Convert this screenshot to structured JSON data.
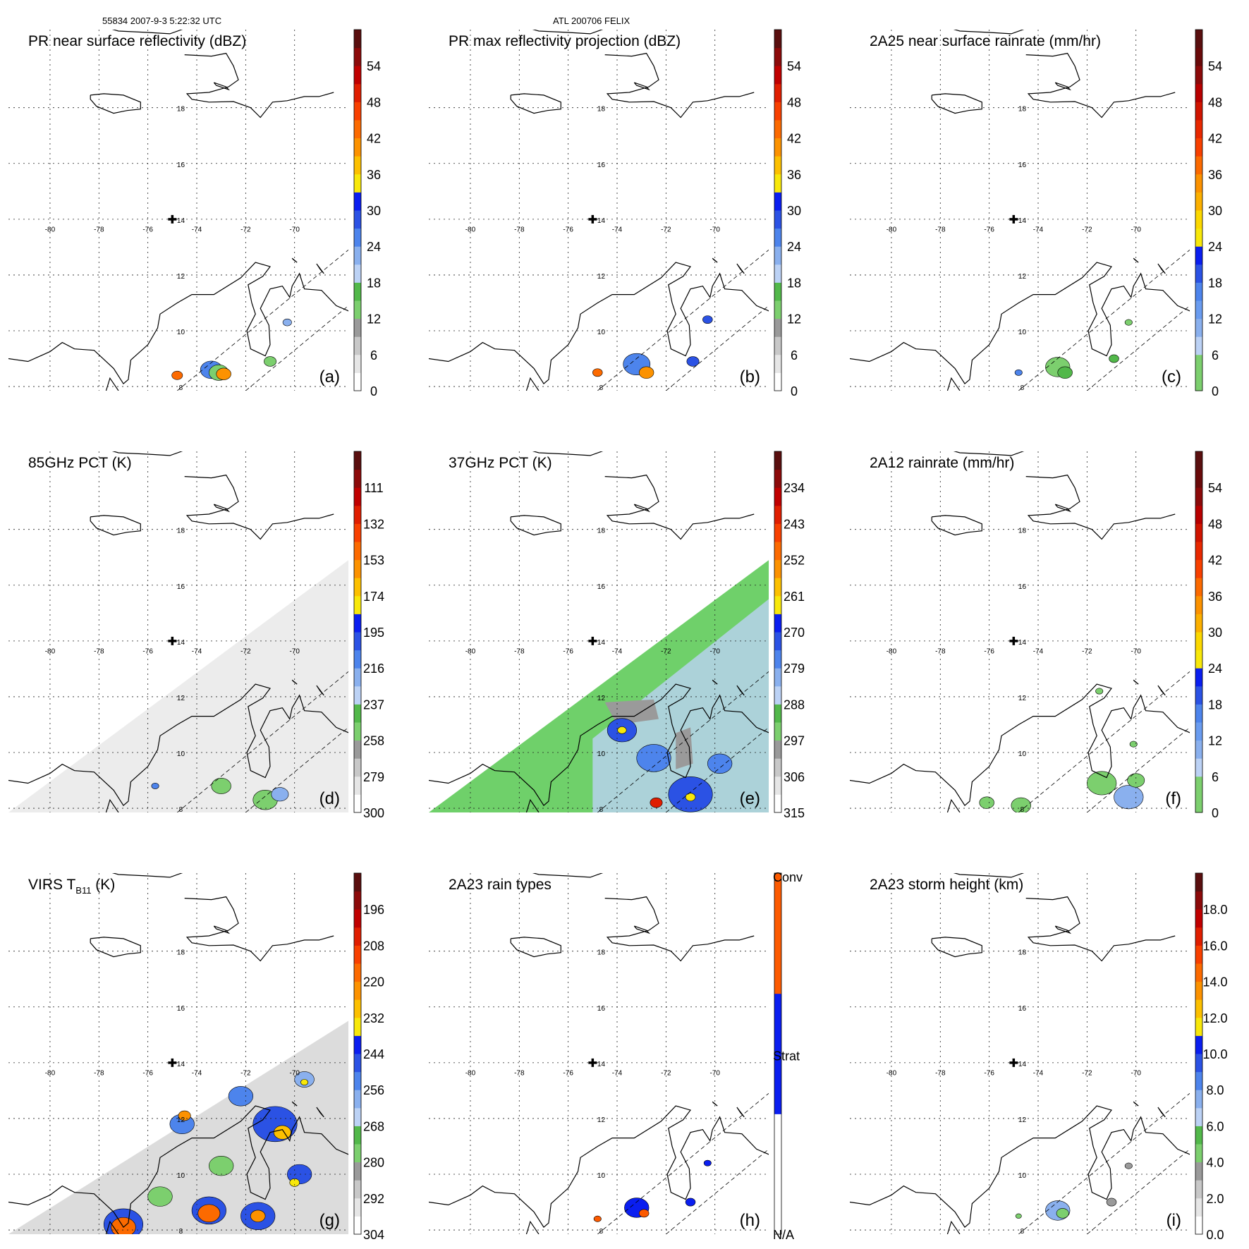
{
  "header": {
    "orbit_info": "55834 2007-9-3 5:22:32 UTC",
    "storm_info": "ATL 200706 FELIX"
  },
  "map": {
    "lon_labels": [
      "-80",
      "-78",
      "-76",
      "-74",
      "-72",
      "-70"
    ],
    "lat_labels": [
      "18",
      "16",
      "14",
      "12",
      "10",
      "8"
    ],
    "storm_center": {
      "lon": -75.0,
      "lat": 14.0
    }
  },
  "panels": [
    {
      "id": "a",
      "title": "PR near surface reflectivity (dBZ)",
      "title_sub": "",
      "title_tail": "",
      "letter": "(a)",
      "swath": "pr",
      "colorbar": {
        "labels": [
          "0",
          "6",
          "12",
          "18",
          "24",
          "30",
          "36",
          "42",
          "48",
          "54"
        ],
        "colors": [
          "#ffffff",
          "#e6e6e6",
          "#c8c8c8",
          "#9a9a9a",
          "#7ccf6e",
          "#52b84a",
          "#bcd2f5",
          "#8ab0ee",
          "#4d84ec",
          "#2b52e4",
          "#0a1ef0",
          "#f8e80a",
          "#fcc000",
          "#fc9200",
          "#fc6a00",
          "#f84000",
          "#e01e00",
          "#c00000",
          "#8c0a0a",
          "#5a0f0f"
        ]
      },
      "echoes": [
        {
          "lon": -73.4,
          "lat": 8.6,
          "size": 0.45,
          "color": "#4d84ec"
        },
        {
          "lon": -73.1,
          "lat": 8.5,
          "size": 0.4,
          "color": "#7ccf6e"
        },
        {
          "lon": -72.9,
          "lat": 8.45,
          "size": 0.3,
          "color": "#fc9200"
        },
        {
          "lon": -74.8,
          "lat": 8.4,
          "size": 0.22,
          "color": "#fc6a00"
        },
        {
          "lon": -71.0,
          "lat": 8.9,
          "size": 0.25,
          "color": "#7ccf6e"
        },
        {
          "lon": -70.3,
          "lat": 10.3,
          "size": 0.18,
          "color": "#8ab0ee"
        }
      ]
    },
    {
      "id": "b",
      "title": "PR max reflectivity projection (dBZ)",
      "title_sub": "",
      "title_tail": "",
      "letter": "(b)",
      "swath": "pr",
      "colorbar": {
        "labels": [
          "0",
          "6",
          "12",
          "18",
          "24",
          "30",
          "36",
          "42",
          "48",
          "54"
        ],
        "colors": [
          "#ffffff",
          "#e6e6e6",
          "#c8c8c8",
          "#9a9a9a",
          "#7ccf6e",
          "#52b84a",
          "#bcd2f5",
          "#8ab0ee",
          "#4d84ec",
          "#2b52e4",
          "#0a1ef0",
          "#f8e80a",
          "#fcc000",
          "#fc9200",
          "#fc6a00",
          "#f84000",
          "#e01e00",
          "#c00000",
          "#8c0a0a",
          "#5a0f0f"
        ]
      },
      "echoes": [
        {
          "lon": -73.2,
          "lat": 8.8,
          "size": 0.55,
          "color": "#4d84ec"
        },
        {
          "lon": -72.8,
          "lat": 8.5,
          "size": 0.3,
          "color": "#fc9200"
        },
        {
          "lon": -74.8,
          "lat": 8.5,
          "size": 0.2,
          "color": "#fc6a00"
        },
        {
          "lon": -70.9,
          "lat": 8.9,
          "size": 0.25,
          "color": "#2b52e4"
        },
        {
          "lon": -70.3,
          "lat": 10.4,
          "size": 0.2,
          "color": "#2b52e4"
        }
      ]
    },
    {
      "id": "c",
      "title": "2A25 near surface rainrate (mm/hr)",
      "title_sub": "",
      "title_tail": "",
      "letter": "(c)",
      "swath": "pr",
      "colorbar": {
        "labels": [
          "0",
          "6",
          "12",
          "18",
          "24",
          "30",
          "36",
          "42",
          "48",
          "54"
        ],
        "colors": [
          "#7ccf6e",
          "#7ccf6e",
          "#bcd2f5",
          "#8ab0ee",
          "#6a9cf0",
          "#4d84ec",
          "#2b52e4",
          "#0a1ef0",
          "#f8e80a",
          "#fcd800",
          "#fcb000",
          "#fc9200",
          "#fc6a00",
          "#f84000",
          "#e82800",
          "#d01400",
          "#b80000",
          "#8c0a0a",
          "#6a0a0a",
          "#5a0f0f"
        ]
      },
      "echoes": [
        {
          "lon": -73.2,
          "lat": 8.7,
          "size": 0.5,
          "color": "#7ccf6e"
        },
        {
          "lon": -72.9,
          "lat": 8.5,
          "size": 0.3,
          "color": "#52b84a"
        },
        {
          "lon": -74.8,
          "lat": 8.5,
          "size": 0.15,
          "color": "#4d84ec"
        },
        {
          "lon": -70.9,
          "lat": 9.0,
          "size": 0.2,
          "color": "#52b84a"
        },
        {
          "lon": -70.3,
          "lat": 10.3,
          "size": 0.15,
          "color": "#7ccf6e"
        }
      ]
    },
    {
      "id": "d",
      "title": "85GHz PCT (K)",
      "title_sub": "",
      "title_tail": "",
      "letter": "(d)",
      "swath": "tmi-gray",
      "colorbar": {
        "labels": [
          "300",
          "279",
          "258",
          "237",
          "216",
          "195",
          "174",
          "153",
          "132",
          "111"
        ],
        "colors": [
          "#ffffff",
          "#e6e6e6",
          "#c8c8c8",
          "#9a9a9a",
          "#7ccf6e",
          "#52b84a",
          "#bcd2f5",
          "#8ab0ee",
          "#4d84ec",
          "#2b52e4",
          "#0a1ef0",
          "#f8e80a",
          "#fcc000",
          "#fc9200",
          "#fc6a00",
          "#f84000",
          "#e01e00",
          "#c00000",
          "#8c0a0a",
          "#5a0f0f"
        ]
      },
      "echoes": [
        {
          "lon": -73.0,
          "lat": 8.8,
          "size": 0.4,
          "color": "#7ccf6e"
        },
        {
          "lon": -71.2,
          "lat": 8.3,
          "size": 0.5,
          "color": "#7ccf6e"
        },
        {
          "lon": -70.6,
          "lat": 8.5,
          "size": 0.35,
          "color": "#8ab0ee"
        },
        {
          "lon": -75.7,
          "lat": 8.8,
          "size": 0.15,
          "color": "#4d84ec"
        }
      ]
    },
    {
      "id": "e",
      "title": "37GHz PCT (K)",
      "title_sub": "",
      "title_tail": "",
      "letter": "(e)",
      "swath": "tmi-color",
      "colorbar": {
        "labels": [
          "315",
          "306",
          "297",
          "288",
          "279",
          "270",
          "261",
          "252",
          "243",
          "234"
        ],
        "colors": [
          "#ffffff",
          "#e6e6e6",
          "#c8c8c8",
          "#9a9a9a",
          "#7ccf6e",
          "#52b84a",
          "#bcd2f5",
          "#8ab0ee",
          "#4d84ec",
          "#2b52e4",
          "#0a1ef0",
          "#f8e80a",
          "#fcc000",
          "#fc9200",
          "#fc6a00",
          "#f84000",
          "#e01e00",
          "#c00000",
          "#8c0a0a",
          "#5a0f0f"
        ]
      },
      "echoes": [
        {
          "lon": -73.8,
          "lat": 10.8,
          "size": 0.6,
          "color": "#2b52e4"
        },
        {
          "lon": -73.8,
          "lat": 10.8,
          "size": 0.18,
          "color": "#f8e80a"
        },
        {
          "lon": -71.0,
          "lat": 8.5,
          "size": 0.9,
          "color": "#2b52e4"
        },
        {
          "lon": -71.0,
          "lat": 8.4,
          "size": 0.2,
          "color": "#f8e80a"
        },
        {
          "lon": -72.5,
          "lat": 9.8,
          "size": 0.7,
          "color": "#4d84ec"
        },
        {
          "lon": -69.8,
          "lat": 9.6,
          "size": 0.5,
          "color": "#4d84ec"
        },
        {
          "lon": -72.4,
          "lat": 8.2,
          "size": 0.25,
          "color": "#e01e00"
        }
      ]
    },
    {
      "id": "f",
      "title": "2A12 rainrate (mm/hr)",
      "title_sub": "",
      "title_tail": "",
      "letter": "(f)",
      "swath": "none",
      "colorbar": {
        "labels": [
          "0",
          "6",
          "12",
          "18",
          "24",
          "30",
          "36",
          "42",
          "48",
          "54"
        ],
        "colors": [
          "#7ccf6e",
          "#7ccf6e",
          "#bcd2f5",
          "#8ab0ee",
          "#6a9cf0",
          "#4d84ec",
          "#2b52e4",
          "#0a1ef0",
          "#f8e80a",
          "#fcd800",
          "#fcb000",
          "#fc9200",
          "#fc6a00",
          "#f84000",
          "#e82800",
          "#d01400",
          "#b80000",
          "#8c0a0a",
          "#6a0a0a",
          "#5a0f0f"
        ]
      },
      "echoes": [
        {
          "lon": -71.4,
          "lat": 8.9,
          "size": 0.6,
          "color": "#7ccf6e"
        },
        {
          "lon": -70.3,
          "lat": 8.4,
          "size": 0.6,
          "color": "#8ab0ee"
        },
        {
          "lon": -70.0,
          "lat": 9.0,
          "size": 0.35,
          "color": "#7ccf6e"
        },
        {
          "lon": -74.7,
          "lat": 8.1,
          "size": 0.4,
          "color": "#7ccf6e"
        },
        {
          "lon": -76.1,
          "lat": 8.2,
          "size": 0.3,
          "color": "#7ccf6e"
        },
        {
          "lon": -71.5,
          "lat": 12.2,
          "size": 0.15,
          "color": "#7ccf6e"
        },
        {
          "lon": -70.1,
          "lat": 10.3,
          "size": 0.15,
          "color": "#7ccf6e"
        }
      ]
    },
    {
      "id": "g",
      "title": "VIRS T",
      "title_sub": "B11",
      "title_tail": " (K)",
      "letter": "(g)",
      "swath": "virs",
      "colorbar": {
        "labels": [
          "304",
          "292",
          "280",
          "268",
          "256",
          "244",
          "232",
          "220",
          "208",
          "196"
        ],
        "colors": [
          "#ffffff",
          "#e6e6e6",
          "#c8c8c8",
          "#9a9a9a",
          "#7ccf6e",
          "#52b84a",
          "#bcd2f5",
          "#8ab0ee",
          "#4d84ec",
          "#2b52e4",
          "#0a1ef0",
          "#f8e80a",
          "#fcc000",
          "#fc9200",
          "#fc6a00",
          "#f84000",
          "#e01e00",
          "#c00000",
          "#8c0a0a",
          "#5a0f0f"
        ]
      },
      "echoes": [
        {
          "lon": -73.5,
          "lat": 8.7,
          "size": 0.7,
          "color": "#2b52e4"
        },
        {
          "lon": -73.5,
          "lat": 8.6,
          "size": 0.45,
          "color": "#fc6a00"
        },
        {
          "lon": -77.0,
          "lat": 8.2,
          "size": 0.8,
          "color": "#2b52e4"
        },
        {
          "lon": -77.0,
          "lat": 8.1,
          "size": 0.5,
          "color": "#fc6a00"
        },
        {
          "lon": -71.5,
          "lat": 8.5,
          "size": 0.7,
          "color": "#2b52e4"
        },
        {
          "lon": -71.5,
          "lat": 8.5,
          "size": 0.3,
          "color": "#fc9200"
        },
        {
          "lon": -70.8,
          "lat": 11.8,
          "size": 0.9,
          "color": "#2b52e4"
        },
        {
          "lon": -70.5,
          "lat": 11.5,
          "size": 0.35,
          "color": "#fcc000"
        },
        {
          "lon": -72.2,
          "lat": 12.8,
          "size": 0.5,
          "color": "#4d84ec"
        },
        {
          "lon": -74.6,
          "lat": 11.8,
          "size": 0.5,
          "color": "#4d84ec"
        },
        {
          "lon": -74.5,
          "lat": 12.1,
          "size": 0.25,
          "color": "#fc9200"
        },
        {
          "lon": -69.8,
          "lat": 10.0,
          "size": 0.5,
          "color": "#2b52e4"
        },
        {
          "lon": -70.0,
          "lat": 9.7,
          "size": 0.2,
          "color": "#f8e80a"
        },
        {
          "lon": -75.5,
          "lat": 9.2,
          "size": 0.5,
          "color": "#7ccf6e"
        },
        {
          "lon": -73.0,
          "lat": 10.3,
          "size": 0.5,
          "color": "#7ccf6e"
        },
        {
          "lon": -69.6,
          "lat": 13.4,
          "size": 0.4,
          "color": "#8ab0ee"
        },
        {
          "lon": -69.6,
          "lat": 13.3,
          "size": 0.15,
          "color": "#f8e80a"
        }
      ]
    },
    {
      "id": "h",
      "title": "2A23 rain types",
      "title_sub": "",
      "title_tail": "",
      "letter": "(h)",
      "swath": "pr",
      "colorbar": {
        "labels": [
          "N/A",
          "Strat",
          "Conv"
        ],
        "categorical": true,
        "colors": [
          "#ffffff",
          "#0a1ef0",
          "#fc5a00"
        ]
      },
      "echoes": [
        {
          "lon": -73.2,
          "lat": 8.8,
          "size": 0.5,
          "color": "#0a1ef0"
        },
        {
          "lon": -72.9,
          "lat": 8.6,
          "size": 0.2,
          "color": "#fc5a00"
        },
        {
          "lon": -74.8,
          "lat": 8.4,
          "size": 0.15,
          "color": "#fc5a00"
        },
        {
          "lon": -71.0,
          "lat": 9.0,
          "size": 0.2,
          "color": "#0a1ef0"
        },
        {
          "lon": -70.3,
          "lat": 10.4,
          "size": 0.15,
          "color": "#0a1ef0"
        }
      ]
    },
    {
      "id": "i",
      "title": "2A23 storm height (km)",
      "title_sub": "",
      "title_tail": "",
      "letter": "(i)",
      "swath": "pr",
      "colorbar": {
        "labels": [
          "0.0",
          "2.0",
          "4.0",
          "6.0",
          "8.0",
          "10.0",
          "12.0",
          "14.0",
          "16.0",
          "18.0"
        ],
        "colors": [
          "#ffffff",
          "#e6e6e6",
          "#c8c8c8",
          "#9a9a9a",
          "#7ccf6e",
          "#52b84a",
          "#bcd2f5",
          "#8ab0ee",
          "#4d84ec",
          "#2b52e4",
          "#0a1ef0",
          "#f8e80a",
          "#fcc000",
          "#fc9200",
          "#fc6a00",
          "#f84000",
          "#e01e00",
          "#c00000",
          "#8c0a0a",
          "#5a0f0f"
        ]
      },
      "echoes": [
        {
          "lon": -73.2,
          "lat": 8.7,
          "size": 0.5,
          "color": "#8ab0ee"
        },
        {
          "lon": -73.0,
          "lat": 8.6,
          "size": 0.25,
          "color": "#7ccf6e"
        },
        {
          "lon": -71.0,
          "lat": 9.0,
          "size": 0.2,
          "color": "#9a9a9a"
        },
        {
          "lon": -70.3,
          "lat": 10.3,
          "size": 0.15,
          "color": "#9a9a9a"
        },
        {
          "lon": -74.8,
          "lat": 8.5,
          "size": 0.12,
          "color": "#7ccf6e"
        }
      ]
    }
  ]
}
